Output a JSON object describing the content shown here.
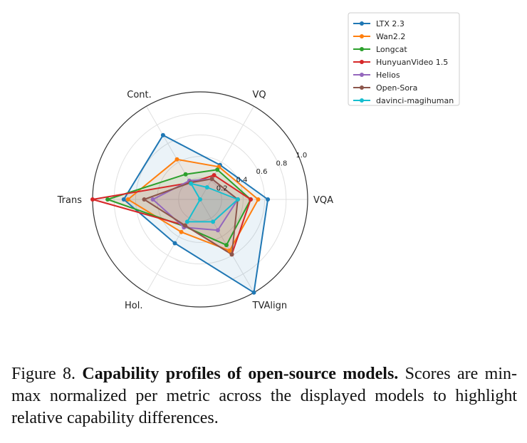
{
  "chart_data": {
    "type": "radar",
    "axes": [
      "VQA",
      "VQ",
      "Cont.",
      "Trans",
      "Hol.",
      "TVAlign"
    ],
    "rticks": [
      "0.2",
      "0.4",
      "0.6",
      "0.8",
      "1.0"
    ],
    "rlim": [
      0,
      1
    ],
    "legend_position": "top-right",
    "series": [
      {
        "name": "LTX 2.3",
        "color": "#1f77b4",
        "values": [
          0.63,
          0.37,
          0.69,
          0.71,
          0.47,
          1.0
        ]
      },
      {
        "name": "Wan2.2",
        "color": "#ff7f0e",
        "values": [
          0.54,
          0.35,
          0.43,
          0.67,
          0.35,
          0.55
        ]
      },
      {
        "name": "Longcat",
        "color": "#2ca02c",
        "values": [
          0.47,
          0.32,
          0.27,
          0.86,
          0.29,
          0.49
        ]
      },
      {
        "name": "HunyuanVideo 1.5",
        "color": "#d62728",
        "values": [
          0.47,
          0.26,
          0.18,
          1.0,
          0.28,
          0.59
        ]
      },
      {
        "name": "Helios",
        "color": "#9467bd",
        "values": [
          0.35,
          0.22,
          0.2,
          0.44,
          0.3,
          0.33
        ]
      },
      {
        "name": "Open-Sora",
        "color": "#8c564b",
        "values": [
          0.35,
          0.22,
          0.18,
          0.52,
          0.28,
          0.59
        ]
      },
      {
        "name": "davinci-magihuman",
        "color": "#17becf",
        "values": [
          0.35,
          0.13,
          0.17,
          0.0,
          0.24,
          0.24
        ]
      }
    ]
  },
  "caption": {
    "prefix": "Figure 8. ",
    "bold": "Capability profiles of open-source models.",
    "rest": " Scores are min-max normalized per metric across the displayed models to highlight relative capability differences."
  }
}
